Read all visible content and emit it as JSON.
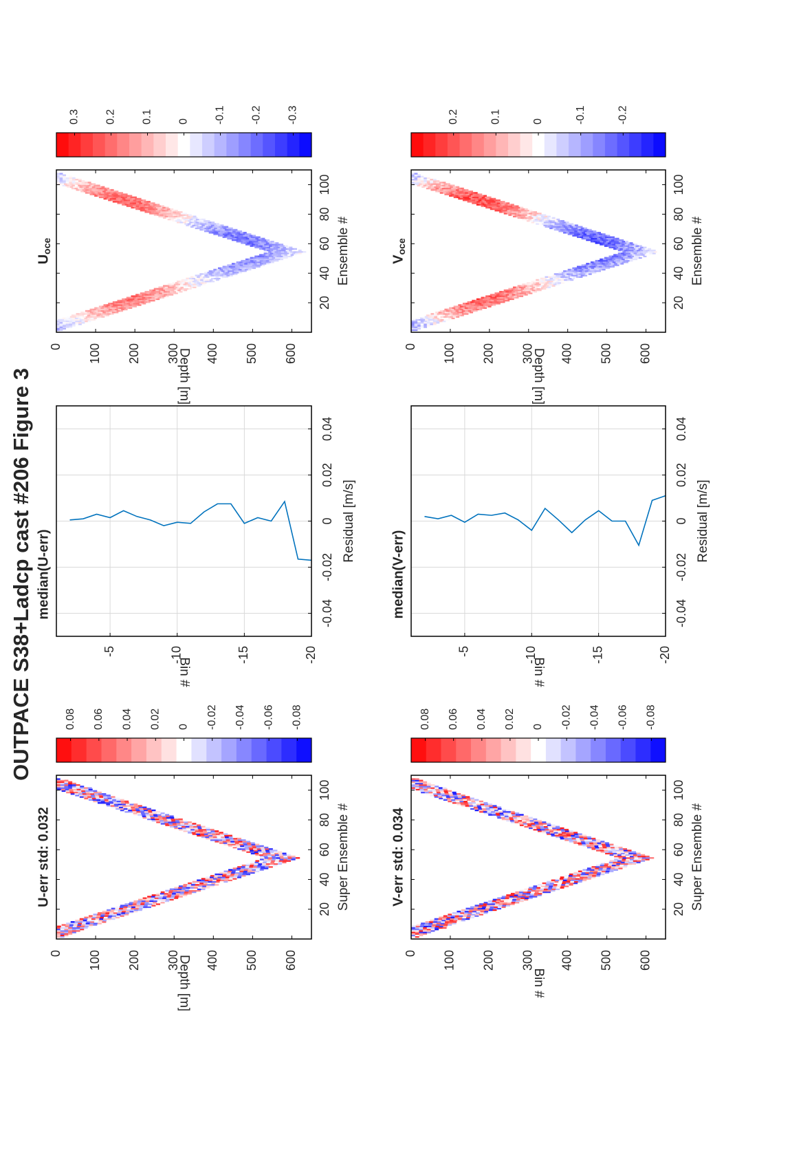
{
  "figure_title": "OUTPACE S38+Ladcp cast #206  Figure 3",
  "chart_data": [
    {
      "id": "u_err_section",
      "type": "heatmap",
      "title": "U-err std: 0.032",
      "xlabel": "Super Ensemble #",
      "ylabel": "Depth [m]",
      "xlim": [
        0,
        110
      ],
      "ylim": [
        0,
        650
      ],
      "x_ticks": [
        "20",
        "40",
        "60",
        "80",
        "100"
      ],
      "y_ticks": [
        "0",
        "100",
        "200",
        "300",
        "400",
        "500",
        "600"
      ],
      "cast_profile": {
        "start_depth": 0,
        "max_depth": 620,
        "bottom_ensemble": 54,
        "end_ensemble": 108,
        "band_width_m": 90
      },
      "colorbar": {
        "min": -0.09,
        "max": 0.09,
        "levels": 17,
        "tick_labels": [
          "0.08",
          "0.06",
          "0.04",
          "0.02",
          "0",
          "-0.02",
          "-0.04",
          "-0.06",
          "-0.08"
        ]
      }
    },
    {
      "id": "median_u_err",
      "type": "line",
      "title": "median(U-err)",
      "xlabel": "Residual [m/s]",
      "ylabel": "Bin #",
      "xlim": [
        -0.05,
        0.05
      ],
      "ylim": [
        -20,
        -1
      ],
      "x_ticks": [
        "-0.04",
        "-0.02",
        "0",
        "0.02",
        "0.04"
      ],
      "y_ticks": [
        "-5",
        "-10",
        "-15",
        "-20"
      ],
      "grid": true,
      "series": [
        {
          "bins": [
            -2,
            -3,
            -4,
            -5,
            -6,
            -7,
            -8,
            -9,
            -10,
            -11,
            -12,
            -13,
            -14,
            -15,
            -16,
            -17,
            -18,
            -19,
            -20
          ],
          "values": [
            0.0005,
            0.001,
            0.003,
            0.0015,
            0.0045,
            0.002,
            0.0005,
            -0.002,
            -0.0005,
            -0.001,
            0.004,
            0.0075,
            0.0075,
            -0.001,
            0.0015,
            0.0,
            0.0085,
            -0.0165,
            -0.017
          ]
        }
      ]
    },
    {
      "id": "u_oce_section",
      "type": "heatmap",
      "title": "U",
      "title_subscript": "oce",
      "xlabel": "Ensemble #",
      "ylabel": "Depth [m]",
      "xlim": [
        0,
        110
      ],
      "ylim": [
        0,
        650
      ],
      "x_ticks": [
        "20",
        "40",
        "60",
        "80",
        "100"
      ],
      "y_ticks": [
        "0",
        "100",
        "200",
        "300",
        "400",
        "500",
        "600"
      ],
      "cast_profile": {
        "start_depth": 0,
        "max_depth": 630,
        "bottom_ensemble": 54,
        "end_ensemble": 108,
        "band_width_m": 90
      },
      "colorbar": {
        "min": -0.35,
        "max": 0.35,
        "levels": 21,
        "tick_labels": [
          "0.3",
          "0.2",
          "0.1",
          "0",
          "-0.1",
          "-0.2",
          "-0.3"
        ]
      }
    },
    {
      "id": "v_err_section",
      "type": "heatmap",
      "title": "V-err std: 0.034",
      "xlabel": "Super Ensemble #",
      "ylabel": "Bin #",
      "xlim": [
        0,
        110
      ],
      "ylim": [
        0,
        650
      ],
      "x_ticks": [
        "20",
        "40",
        "60",
        "80",
        "100"
      ],
      "y_ticks": [
        "0",
        "100",
        "200",
        "300",
        "400",
        "500",
        "600"
      ],
      "cast_profile": {
        "start_depth": 0,
        "max_depth": 620,
        "bottom_ensemble": 54,
        "end_ensemble": 108,
        "band_width_m": 90
      },
      "colorbar": {
        "min": -0.09,
        "max": 0.09,
        "levels": 17,
        "tick_labels": [
          "0.08",
          "0.06",
          "0.04",
          "0.02",
          "0",
          "-0.02",
          "-0.04",
          "-0.06",
          "-0.08"
        ]
      }
    },
    {
      "id": "median_v_err",
      "type": "line",
      "title": "median(V-err)",
      "xlabel": "Residual [m/s]",
      "ylabel": "Bin #",
      "xlim": [
        -0.05,
        0.05
      ],
      "ylim": [
        -20,
        -1
      ],
      "x_ticks": [
        "-0.04",
        "-0.02",
        "0",
        "0.02",
        "0.04"
      ],
      "y_ticks": [
        "-5",
        "-10",
        "-15",
        "-20"
      ],
      "grid": true,
      "series": [
        {
          "bins": [
            -2,
            -3,
            -4,
            -5,
            -6,
            -7,
            -8,
            -9,
            -10,
            -11,
            -12,
            -13,
            -14,
            -15,
            -16,
            -17,
            -18,
            -19,
            -20
          ],
          "values": [
            0.002,
            0.001,
            0.0025,
            -0.0005,
            0.003,
            0.0025,
            0.0035,
            0.0005,
            -0.004,
            0.0055,
            0.0005,
            -0.005,
            0.0005,
            0.0045,
            0.0,
            0.0,
            -0.0105,
            0.009,
            0.011
          ]
        }
      ]
    },
    {
      "id": "v_oce_section",
      "type": "heatmap",
      "title": "V",
      "title_subscript": "oce",
      "xlabel": "Ensemble #",
      "ylabel": "Depth [m]",
      "xlim": [
        0,
        110
      ],
      "ylim": [
        0,
        650
      ],
      "x_ticks": [
        "20",
        "40",
        "60",
        "80",
        "100"
      ],
      "y_ticks": [
        "0",
        "100",
        "200",
        "300",
        "400",
        "500",
        "600"
      ],
      "cast_profile": {
        "start_depth": 0,
        "max_depth": 630,
        "bottom_ensemble": 54,
        "end_ensemble": 108,
        "band_width_m": 90
      },
      "colorbar": {
        "min": -0.3,
        "max": 0.3,
        "levels": 21,
        "tick_labels": [
          "0.2",
          "0.1",
          "0",
          "-0.1",
          "-0.2"
        ]
      }
    }
  ]
}
